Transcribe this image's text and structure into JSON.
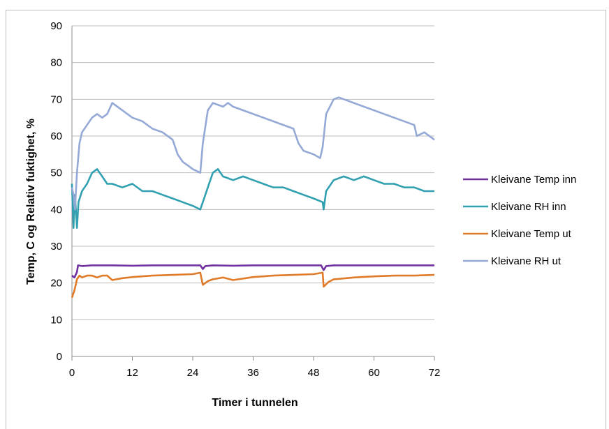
{
  "chart_data": {
    "type": "line",
    "title": "",
    "xlabel": "Timer i tunnelen",
    "ylabel": "Temp, C  og  Relativ fuktighet, %",
    "xlim": [
      0,
      72
    ],
    "ylim": [
      0,
      90
    ],
    "xticks": [
      0,
      12,
      24,
      36,
      48,
      60,
      72
    ],
    "yticks": [
      0,
      10,
      20,
      30,
      40,
      50,
      60,
      70,
      80,
      90
    ],
    "grid": "horizontal",
    "legend_position": "right",
    "series": [
      {
        "name": "Kleivane Temp inn",
        "color": "#7030a0",
        "points": [
          [
            0,
            22
          ],
          [
            0.5,
            21.5
          ],
          [
            1,
            23
          ],
          [
            1.2,
            24.8
          ],
          [
            2,
            24.6
          ],
          [
            4,
            24.8
          ],
          [
            8,
            24.8
          ],
          [
            12,
            24.7
          ],
          [
            16,
            24.8
          ],
          [
            20,
            24.8
          ],
          [
            24,
            24.8
          ],
          [
            25.5,
            24.8
          ],
          [
            26,
            23.8
          ],
          [
            26.5,
            24.6
          ],
          [
            28,
            24.8
          ],
          [
            32,
            24.7
          ],
          [
            36,
            24.8
          ],
          [
            40,
            24.8
          ],
          [
            44,
            24.8
          ],
          [
            49.5,
            24.8
          ],
          [
            50,
            23.5
          ],
          [
            50.5,
            24.6
          ],
          [
            52,
            24.8
          ],
          [
            56,
            24.8
          ],
          [
            60,
            24.8
          ],
          [
            64,
            24.8
          ],
          [
            68,
            24.8
          ],
          [
            72,
            24.8
          ]
        ]
      },
      {
        "name": "Kleivane RH inn",
        "color": "#31a0b0",
        "points": [
          [
            0,
            47
          ],
          [
            0.3,
            35
          ],
          [
            0.6,
            44
          ],
          [
            1,
            35
          ],
          [
            1.3,
            42
          ],
          [
            2,
            45
          ],
          [
            3,
            47
          ],
          [
            4,
            50
          ],
          [
            5,
            51
          ],
          [
            6,
            49
          ],
          [
            7,
            47
          ],
          [
            8,
            47
          ],
          [
            10,
            46
          ],
          [
            12,
            47
          ],
          [
            14,
            45
          ],
          [
            16,
            45
          ],
          [
            18,
            44
          ],
          [
            20,
            43
          ],
          [
            22,
            42
          ],
          [
            24,
            41
          ],
          [
            25.5,
            40
          ],
          [
            26,
            42
          ],
          [
            27,
            46
          ],
          [
            28,
            50
          ],
          [
            29,
            51
          ],
          [
            30,
            49
          ],
          [
            32,
            48
          ],
          [
            34,
            49
          ],
          [
            36,
            48
          ],
          [
            38,
            47
          ],
          [
            40,
            46
          ],
          [
            42,
            46
          ],
          [
            44,
            45
          ],
          [
            46,
            44
          ],
          [
            48,
            43
          ],
          [
            49.8,
            42
          ],
          [
            50,
            40
          ],
          [
            50.5,
            45
          ],
          [
            52,
            48
          ],
          [
            54,
            49
          ],
          [
            56,
            48
          ],
          [
            58,
            49
          ],
          [
            60,
            48
          ],
          [
            62,
            47
          ],
          [
            64,
            47
          ],
          [
            66,
            46
          ],
          [
            68,
            46
          ],
          [
            70,
            45
          ],
          [
            72,
            45
          ]
        ]
      },
      {
        "name": "Kleivane Temp ut",
        "color": "#e07b2a",
        "points": [
          [
            0,
            16
          ],
          [
            0.5,
            18
          ],
          [
            1,
            21
          ],
          [
            1.5,
            22
          ],
          [
            2,
            21.5
          ],
          [
            3,
            22
          ],
          [
            4,
            22
          ],
          [
            5,
            21.5
          ],
          [
            6,
            22
          ],
          [
            7,
            22
          ],
          [
            8,
            20.8
          ],
          [
            10,
            21.3
          ],
          [
            12,
            21.6
          ],
          [
            16,
            22
          ],
          [
            20,
            22.2
          ],
          [
            24,
            22.4
          ],
          [
            25.5,
            22.8
          ],
          [
            26,
            19.5
          ],
          [
            27,
            20.5
          ],
          [
            28,
            21
          ],
          [
            30,
            21.5
          ],
          [
            32,
            20.8
          ],
          [
            36,
            21.6
          ],
          [
            40,
            22
          ],
          [
            44,
            22.2
          ],
          [
            48,
            22.4
          ],
          [
            49.8,
            22.8
          ],
          [
            50,
            19
          ],
          [
            51,
            20.3
          ],
          [
            52,
            21
          ],
          [
            56,
            21.5
          ],
          [
            60,
            21.8
          ],
          [
            64,
            22
          ],
          [
            68,
            22
          ],
          [
            72,
            22.2
          ]
        ]
      },
      {
        "name": "Kleivane RH ut",
        "color": "#95a9d6",
        "points": [
          [
            0,
            46
          ],
          [
            0.3,
            44
          ],
          [
            0.6,
            40
          ],
          [
            1,
            50
          ],
          [
            1.5,
            58
          ],
          [
            2,
            61
          ],
          [
            3,
            63
          ],
          [
            4,
            65
          ],
          [
            5,
            66
          ],
          [
            6,
            65
          ],
          [
            7,
            66
          ],
          [
            8,
            69
          ],
          [
            10,
            67
          ],
          [
            12,
            65
          ],
          [
            14,
            64
          ],
          [
            16,
            62
          ],
          [
            18,
            61
          ],
          [
            20,
            59
          ],
          [
            21,
            55
          ],
          [
            22,
            53
          ],
          [
            23,
            52
          ],
          [
            24,
            51
          ],
          [
            25.5,
            50
          ],
          [
            26,
            58
          ],
          [
            27,
            67
          ],
          [
            28,
            69
          ],
          [
            30,
            68
          ],
          [
            31,
            69
          ],
          [
            32,
            68
          ],
          [
            36,
            66
          ],
          [
            40,
            64
          ],
          [
            44,
            62
          ],
          [
            45,
            58
          ],
          [
            46,
            56
          ],
          [
            48,
            55
          ],
          [
            49.3,
            54
          ],
          [
            49.8,
            57
          ],
          [
            50.5,
            66
          ],
          [
            52,
            70
          ],
          [
            53,
            70.5
          ],
          [
            54,
            70
          ],
          [
            56,
            69
          ],
          [
            60,
            67
          ],
          [
            64,
            65
          ],
          [
            68,
            63
          ],
          [
            68.5,
            60
          ],
          [
            70,
            61
          ],
          [
            72,
            59
          ]
        ]
      }
    ]
  }
}
